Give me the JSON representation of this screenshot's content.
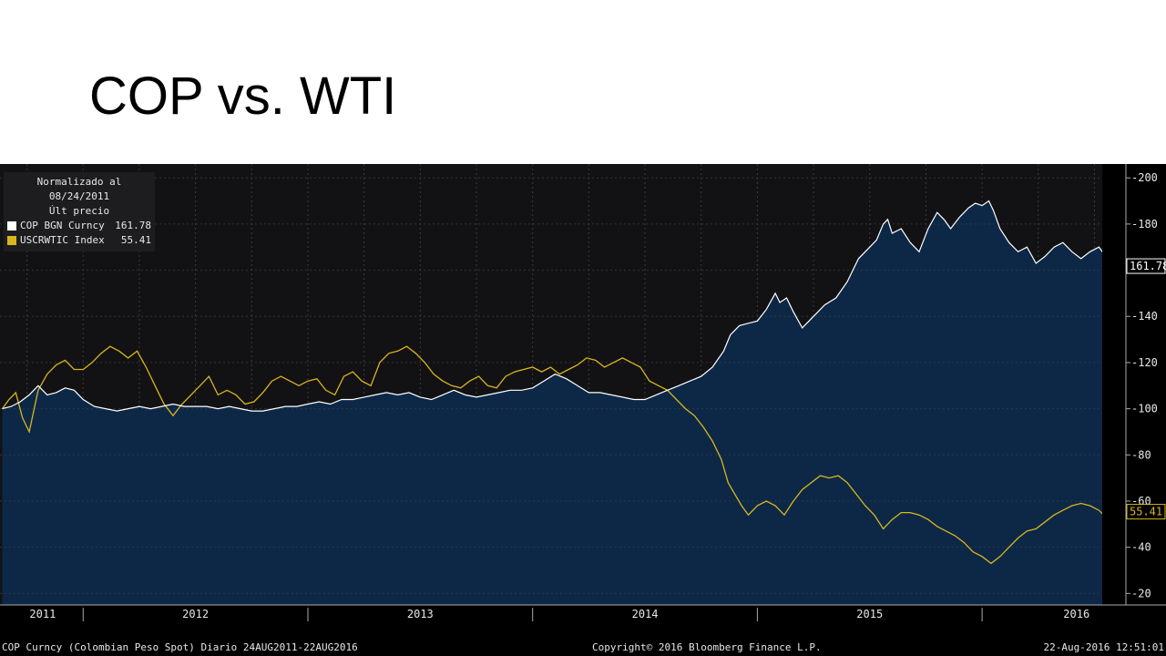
{
  "slide": {
    "title": "COP vs. WTI"
  },
  "legend": {
    "header_line1": "Normalizado al 08/24/2011",
    "header_line2": "Últ precio",
    "items": [
      {
        "name": "COP BGN Curncy",
        "value": "161.78",
        "color": "#ffffff"
      },
      {
        "name": "USCRWTIC Index",
        "value": "55.41",
        "color": "#d9b51e"
      }
    ]
  },
  "footer": {
    "left": "COP Curncy (Colombian Peso Spot)  Diario 24AUG2011-22AUG2016",
    "center": "Copyright© 2016 Bloomberg Finance L.P.",
    "right": "22-Aug-2016 12:51:01"
  },
  "colors": {
    "background": "#000000",
    "plot_background": "#121214",
    "area_fill": "#0d2847",
    "grid": "#3a3a3a",
    "cop_line": "#ffffff",
    "wti_line": "#d9b51e",
    "text": "#e8e8e8"
  },
  "chart_data": {
    "type": "line",
    "title": "",
    "xlabel": "",
    "ylabel": "",
    "ylim": [
      15,
      206
    ],
    "xlim": [
      2011.63,
      2016.64
    ],
    "y_ticks": [
      20,
      40,
      60,
      80,
      100,
      120,
      140,
      160,
      180,
      200
    ],
    "x_tick_labels": [
      {
        "label": "2011",
        "x": 2011.82
      },
      {
        "label": "2012",
        "x": 2012.5
      },
      {
        "label": "2013",
        "x": 2013.5
      },
      {
        "label": "2014",
        "x": 2014.5
      },
      {
        "label": "2015",
        "x": 2015.5
      },
      {
        "label": "2016",
        "x": 2016.42
      }
    ],
    "year_boundaries": [
      2012,
      2013,
      2014,
      2015,
      2016
    ],
    "grid": true,
    "legend_position": "top-left",
    "series": [
      {
        "name": "COP BGN Curncy",
        "last_value": 161.78,
        "fill": true,
        "points": [
          [
            2011.64,
            100
          ],
          [
            2011.68,
            101
          ],
          [
            2011.72,
            103
          ],
          [
            2011.76,
            106
          ],
          [
            2011.8,
            110
          ],
          [
            2011.84,
            106
          ],
          [
            2011.88,
            107
          ],
          [
            2011.92,
            109
          ],
          [
            2011.96,
            108
          ],
          [
            2012.0,
            104
          ],
          [
            2012.05,
            101
          ],
          [
            2012.1,
            100
          ],
          [
            2012.15,
            99
          ],
          [
            2012.2,
            100
          ],
          [
            2012.25,
            101
          ],
          [
            2012.3,
            100
          ],
          [
            2012.35,
            101
          ],
          [
            2012.4,
            102
          ],
          [
            2012.45,
            101
          ],
          [
            2012.5,
            101
          ],
          [
            2012.55,
            101
          ],
          [
            2012.6,
            100
          ],
          [
            2012.65,
            101
          ],
          [
            2012.7,
            100
          ],
          [
            2012.75,
            99
          ],
          [
            2012.8,
            99
          ],
          [
            2012.85,
            100
          ],
          [
            2012.9,
            101
          ],
          [
            2012.95,
            101
          ],
          [
            2013.0,
            102
          ],
          [
            2013.05,
            103
          ],
          [
            2013.1,
            102
          ],
          [
            2013.15,
            104
          ],
          [
            2013.2,
            104
          ],
          [
            2013.25,
            105
          ],
          [
            2013.3,
            106
          ],
          [
            2013.35,
            107
          ],
          [
            2013.4,
            106
          ],
          [
            2013.45,
            107
          ],
          [
            2013.5,
            105
          ],
          [
            2013.55,
            104
          ],
          [
            2013.6,
            106
          ],
          [
            2013.65,
            108
          ],
          [
            2013.7,
            106
          ],
          [
            2013.75,
            105
          ],
          [
            2013.8,
            106
          ],
          [
            2013.85,
            107
          ],
          [
            2013.9,
            108
          ],
          [
            2013.95,
            108
          ],
          [
            2014.0,
            109
          ],
          [
            2014.05,
            112
          ],
          [
            2014.1,
            115
          ],
          [
            2014.15,
            113
          ],
          [
            2014.2,
            110
          ],
          [
            2014.25,
            107
          ],
          [
            2014.3,
            107
          ],
          [
            2014.35,
            106
          ],
          [
            2014.4,
            105
          ],
          [
            2014.45,
            104
          ],
          [
            2014.5,
            104
          ],
          [
            2014.55,
            106
          ],
          [
            2014.6,
            108
          ],
          [
            2014.65,
            110
          ],
          [
            2014.7,
            112
          ],
          [
            2014.75,
            114
          ],
          [
            2014.8,
            118
          ],
          [
            2014.85,
            125
          ],
          [
            2014.88,
            132
          ],
          [
            2014.92,
            136
          ],
          [
            2014.96,
            137
          ],
          [
            2015.0,
            138
          ],
          [
            2015.04,
            143
          ],
          [
            2015.08,
            150
          ],
          [
            2015.1,
            146
          ],
          [
            2015.13,
            148
          ],
          [
            2015.16,
            142
          ],
          [
            2015.2,
            135
          ],
          [
            2015.25,
            140
          ],
          [
            2015.3,
            145
          ],
          [
            2015.35,
            148
          ],
          [
            2015.4,
            155
          ],
          [
            2015.45,
            165
          ],
          [
            2015.5,
            170
          ],
          [
            2015.53,
            173
          ],
          [
            2015.56,
            180
          ],
          [
            2015.58,
            182
          ],
          [
            2015.6,
            176
          ],
          [
            2015.64,
            178
          ],
          [
            2015.68,
            172
          ],
          [
            2015.72,
            168
          ],
          [
            2015.76,
            178
          ],
          [
            2015.8,
            185
          ],
          [
            2015.83,
            182
          ],
          [
            2015.86,
            178
          ],
          [
            2015.9,
            183
          ],
          [
            2015.94,
            187
          ],
          [
            2015.97,
            189
          ],
          [
            2016.0,
            188
          ],
          [
            2016.03,
            190
          ],
          [
            2016.05,
            186
          ],
          [
            2016.08,
            178
          ],
          [
            2016.12,
            172
          ],
          [
            2016.16,
            168
          ],
          [
            2016.2,
            170
          ],
          [
            2016.24,
            163
          ],
          [
            2016.28,
            166
          ],
          [
            2016.32,
            170
          ],
          [
            2016.36,
            172
          ],
          [
            2016.4,
            168
          ],
          [
            2016.44,
            165
          ],
          [
            2016.48,
            168
          ],
          [
            2016.52,
            170
          ],
          [
            2016.55,
            166
          ],
          [
            2016.58,
            163
          ],
          [
            2016.62,
            161.78
          ]
        ]
      },
      {
        "name": "USCRWTIC Index",
        "last_value": 55.41,
        "fill": false,
        "points": [
          [
            2011.64,
            100
          ],
          [
            2011.67,
            104
          ],
          [
            2011.7,
            107
          ],
          [
            2011.73,
            96
          ],
          [
            2011.76,
            90
          ],
          [
            2011.8,
            108
          ],
          [
            2011.84,
            115
          ],
          [
            2011.88,
            119
          ],
          [
            2011.92,
            121
          ],
          [
            2011.96,
            117
          ],
          [
            2012.0,
            117
          ],
          [
            2012.04,
            120
          ],
          [
            2012.08,
            124
          ],
          [
            2012.12,
            127
          ],
          [
            2012.16,
            125
          ],
          [
            2012.2,
            122
          ],
          [
            2012.24,
            125
          ],
          [
            2012.28,
            118
          ],
          [
            2012.32,
            110
          ],
          [
            2012.36,
            102
          ],
          [
            2012.4,
            97
          ],
          [
            2012.44,
            102
          ],
          [
            2012.48,
            106
          ],
          [
            2012.52,
            110
          ],
          [
            2012.56,
            114
          ],
          [
            2012.6,
            106
          ],
          [
            2012.64,
            108
          ],
          [
            2012.68,
            106
          ],
          [
            2012.72,
            102
          ],
          [
            2012.76,
            103
          ],
          [
            2012.8,
            107
          ],
          [
            2012.84,
            112
          ],
          [
            2012.88,
            114
          ],
          [
            2012.92,
            112
          ],
          [
            2012.96,
            110
          ],
          [
            2013.0,
            112
          ],
          [
            2013.04,
            113
          ],
          [
            2013.08,
            108
          ],
          [
            2013.12,
            106
          ],
          [
            2013.16,
            114
          ],
          [
            2013.2,
            116
          ],
          [
            2013.24,
            112
          ],
          [
            2013.28,
            110
          ],
          [
            2013.32,
            120
          ],
          [
            2013.36,
            124
          ],
          [
            2013.4,
            125
          ],
          [
            2013.44,
            127
          ],
          [
            2013.48,
            124
          ],
          [
            2013.52,
            120
          ],
          [
            2013.56,
            115
          ],
          [
            2013.6,
            112
          ],
          [
            2013.64,
            110
          ],
          [
            2013.68,
            109
          ],
          [
            2013.72,
            112
          ],
          [
            2013.76,
            114
          ],
          [
            2013.8,
            110
          ],
          [
            2013.84,
            109
          ],
          [
            2013.88,
            114
          ],
          [
            2013.92,
            116
          ],
          [
            2013.96,
            117
          ],
          [
            2014.0,
            118
          ],
          [
            2014.04,
            116
          ],
          [
            2014.08,
            118
          ],
          [
            2014.12,
            115
          ],
          [
            2014.16,
            117
          ],
          [
            2014.2,
            119
          ],
          [
            2014.24,
            122
          ],
          [
            2014.28,
            121
          ],
          [
            2014.32,
            118
          ],
          [
            2014.36,
            120
          ],
          [
            2014.4,
            122
          ],
          [
            2014.44,
            120
          ],
          [
            2014.48,
            118
          ],
          [
            2014.52,
            112
          ],
          [
            2014.56,
            110
          ],
          [
            2014.6,
            108
          ],
          [
            2014.64,
            104
          ],
          [
            2014.68,
            100
          ],
          [
            2014.72,
            97
          ],
          [
            2014.76,
            92
          ],
          [
            2014.8,
            86
          ],
          [
            2014.84,
            78
          ],
          [
            2014.87,
            68
          ],
          [
            2014.9,
            63
          ],
          [
            2014.93,
            58
          ],
          [
            2014.96,
            54
          ],
          [
            2015.0,
            58
          ],
          [
            2015.04,
            60
          ],
          [
            2015.08,
            58
          ],
          [
            2015.12,
            54
          ],
          [
            2015.16,
            60
          ],
          [
            2015.2,
            65
          ],
          [
            2015.24,
            68
          ],
          [
            2015.28,
            71
          ],
          [
            2015.32,
            70
          ],
          [
            2015.36,
            71
          ],
          [
            2015.4,
            68
          ],
          [
            2015.44,
            63
          ],
          [
            2015.48,
            58
          ],
          [
            2015.52,
            54
          ],
          [
            2015.56,
            48
          ],
          [
            2015.6,
            52
          ],
          [
            2015.64,
            55
          ],
          [
            2015.68,
            55
          ],
          [
            2015.72,
            54
          ],
          [
            2015.76,
            52
          ],
          [
            2015.8,
            49
          ],
          [
            2015.84,
            47
          ],
          [
            2015.88,
            45
          ],
          [
            2015.92,
            42
          ],
          [
            2015.96,
            38
          ],
          [
            2016.0,
            36
          ],
          [
            2016.04,
            33
          ],
          [
            2016.08,
            36
          ],
          [
            2016.12,
            40
          ],
          [
            2016.16,
            44
          ],
          [
            2016.2,
            47
          ],
          [
            2016.24,
            48
          ],
          [
            2016.28,
            51
          ],
          [
            2016.32,
            54
          ],
          [
            2016.36,
            56
          ],
          [
            2016.4,
            58
          ],
          [
            2016.44,
            59
          ],
          [
            2016.48,
            58
          ],
          [
            2016.52,
            56
          ],
          [
            2016.56,
            52
          ],
          [
            2016.59,
            49
          ],
          [
            2016.62,
            55.41
          ]
        ]
      }
    ]
  }
}
